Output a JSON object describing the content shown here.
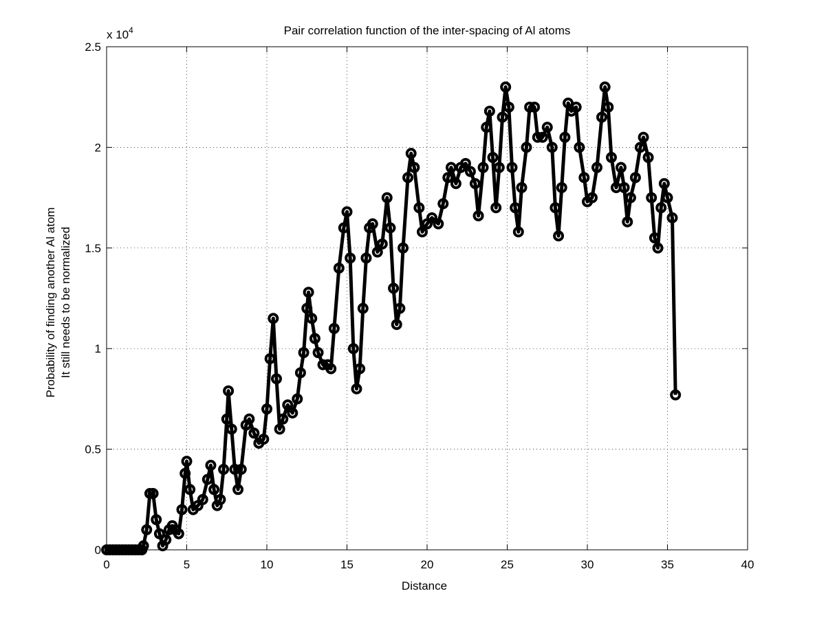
{
  "chart_data": {
    "type": "line",
    "title": "Pair correlation function of the inter-spacing of Al atoms",
    "xlabel": "Distance",
    "ylabel": [
      "Probability of finding another Al atom",
      "It still needs to be normalized"
    ],
    "y_multiplier": {
      "base": "x 10",
      "power": "4"
    },
    "xlim": [
      0,
      40
    ],
    "xticks": [
      0,
      5,
      10,
      15,
      20,
      25,
      30,
      35,
      40
    ],
    "ylim": [
      0,
      2.5
    ],
    "yticks": [
      0,
      0.5,
      1,
      1.5,
      2,
      2.5
    ],
    "grid": true,
    "color": "#000000",
    "x": [
      0,
      0.2,
      0.4,
      0.6,
      0.8,
      1.0,
      1.2,
      1.4,
      1.6,
      1.8,
      2.0,
      2.2,
      2.3,
      2.5,
      2.7,
      2.9,
      3.1,
      3.3,
      3.5,
      3.7,
      3.9,
      4.1,
      4.3,
      4.5,
      4.7,
      4.9,
      5.0,
      5.2,
      5.4,
      5.7,
      6.0,
      6.3,
      6.5,
      6.7,
      6.9,
      7.1,
      7.3,
      7.5,
      7.6,
      7.8,
      8.0,
      8.2,
      8.4,
      8.7,
      8.9,
      9.2,
      9.5,
      9.8,
      10.0,
      10.2,
      10.4,
      10.6,
      10.8,
      11.0,
      11.3,
      11.6,
      11.9,
      12.1,
      12.3,
      12.5,
      12.6,
      12.8,
      13.0,
      13.2,
      13.5,
      13.8,
      14.0,
      14.2,
      14.5,
      14.8,
      15.0,
      15.2,
      15.4,
      15.6,
      15.8,
      16.0,
      16.2,
      16.4,
      16.6,
      16.9,
      17.2,
      17.5,
      17.7,
      17.9,
      18.1,
      18.3,
      18.5,
      18.8,
      19.0,
      19.2,
      19.5,
      19.7,
      20.0,
      20.3,
      20.7,
      21.0,
      21.3,
      21.5,
      21.8,
      22.1,
      22.4,
      22.7,
      23.0,
      23.2,
      23.5,
      23.7,
      23.9,
      24.1,
      24.3,
      24.5,
      24.7,
      24.9,
      25.1,
      25.3,
      25.5,
      25.7,
      25.9,
      26.2,
      26.4,
      26.7,
      26.9,
      27.2,
      27.5,
      27.8,
      28.0,
      28.2,
      28.4,
      28.6,
      28.8,
      29.0,
      29.3,
      29.5,
      29.8,
      30.0,
      30.3,
      30.6,
      30.9,
      31.1,
      31.3,
      31.5,
      31.8,
      32.1,
      32.3,
      32.5,
      32.7,
      33.0,
      33.3,
      33.5,
      33.8,
      34.0,
      34.2,
      34.4,
      34.6,
      34.8,
      35.0,
      35.3,
      35.5
    ],
    "values": [
      0,
      0,
      0,
      0,
      0,
      0,
      0,
      0,
      0,
      0,
      0,
      0,
      0.02,
      0.1,
      0.28,
      0.28,
      0.15,
      0.08,
      0.02,
      0.05,
      0.1,
      0.12,
      0.1,
      0.08,
      0.2,
      0.38,
      0.44,
      0.3,
      0.2,
      0.22,
      0.25,
      0.35,
      0.42,
      0.3,
      0.22,
      0.25,
      0.4,
      0.65,
      0.79,
      0.6,
      0.4,
      0.3,
      0.4,
      0.62,
      0.65,
      0.58,
      0.53,
      0.55,
      0.7,
      0.95,
      1.15,
      0.85,
      0.6,
      0.65,
      0.72,
      0.68,
      0.75,
      0.88,
      0.98,
      1.2,
      1.28,
      1.15,
      1.05,
      0.98,
      0.92,
      0.92,
      0.9,
      1.1,
      1.4,
      1.6,
      1.68,
      1.45,
      1.0,
      0.8,
      0.9,
      1.2,
      1.45,
      1.6,
      1.62,
      1.48,
      1.52,
      1.75,
      1.6,
      1.3,
      1.12,
      1.2,
      1.5,
      1.85,
      1.97,
      1.9,
      1.7,
      1.58,
      1.62,
      1.65,
      1.62,
      1.72,
      1.85,
      1.9,
      1.82,
      1.9,
      1.92,
      1.88,
      1.82,
      1.66,
      1.9,
      2.1,
      2.18,
      1.95,
      1.7,
      1.9,
      2.15,
      2.3,
      2.2,
      1.9,
      1.7,
      1.58,
      1.8,
      2.0,
      2.2,
      2.2,
      2.05,
      2.05,
      2.1,
      2.0,
      1.7,
      1.56,
      1.8,
      2.05,
      2.22,
      2.18,
      2.2,
      2.0,
      1.85,
      1.73,
      1.75,
      1.9,
      2.15,
      2.3,
      2.2,
      1.95,
      1.8,
      1.9,
      1.8,
      1.63,
      1.75,
      1.85,
      2.0,
      2.05,
      1.95,
      1.75,
      1.55,
      1.5,
      1.7,
      1.82,
      1.75,
      1.65,
      0.77
    ]
  }
}
